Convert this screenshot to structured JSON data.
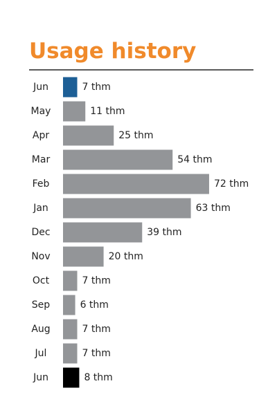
{
  "chart_data": {
    "type": "bar",
    "orientation": "horizontal",
    "title": "Usage history",
    "categories": [
      "Jun",
      "May",
      "Apr",
      "Mar",
      "Feb",
      "Jan",
      "Dec",
      "Nov",
      "Oct",
      "Sep",
      "Aug",
      "Jul",
      "Jun"
    ],
    "values": [
      7,
      11,
      25,
      54,
      72,
      63,
      39,
      20,
      7,
      6,
      7,
      7,
      8
    ],
    "value_labels": [
      "7 thm",
      "11 thm",
      "25 thm",
      "54 thm",
      "72 thm",
      "63 thm",
      "39 thm",
      "20 thm",
      "7 thm",
      "6 thm",
      "7 thm",
      "7 thm",
      "8 thm"
    ],
    "colors": [
      "#1d5f96",
      "#939598",
      "#939598",
      "#939598",
      "#939598",
      "#939598",
      "#939598",
      "#939598",
      "#939598",
      "#939598",
      "#939598",
      "#939598",
      "#000000"
    ]
  }
}
